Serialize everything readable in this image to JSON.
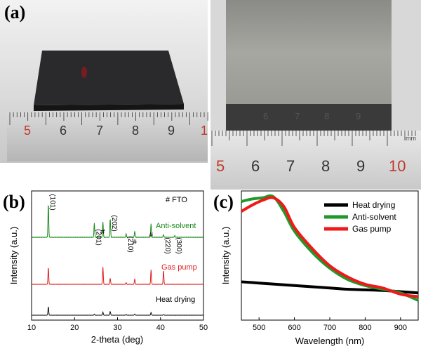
{
  "panels": {
    "a_label": "(a)",
    "b_label": "(b)",
    "c_label": "(c)"
  },
  "photo_left": {
    "ruler_numbers": [
      "5",
      "6",
      "7",
      "8",
      "9",
      "1"
    ],
    "ruler_highlight": "#c0392b"
  },
  "photo_right": {
    "ruler_numbers": [
      "5",
      "6",
      "7",
      "8",
      "9",
      "10"
    ],
    "ruler_unit": "mm",
    "film_digits": [
      "6",
      "7",
      "8",
      "9"
    ]
  },
  "chart_data": [
    {
      "type": "line",
      "xlabel": "2-theta (deg)",
      "ylabel": "Intensity (a.u.)",
      "xlim": [
        10,
        50
      ],
      "xticks": [
        10,
        20,
        30,
        40,
        50
      ],
      "legend_note": "# FTO",
      "series": [
        {
          "name": "Anti-solvent",
          "color": "#1a8a1a",
          "offset": 2,
          "peaks": [
            [
              13.9,
              1.0
            ],
            [
              24.6,
              0.42
            ],
            [
              26.6,
              0.46
            ],
            [
              28.3,
              0.56
            ],
            [
              32.0,
              0.1
            ],
            [
              34.0,
              0.18
            ],
            [
              37.8,
              0.4
            ],
            [
              40.7,
              0.08
            ],
            [
              43.3,
              0.05
            ]
          ]
        },
        {
          "name": "Gas pump",
          "color": "#e02020",
          "offset": 1,
          "peaks": [
            [
              13.9,
              0.6
            ],
            [
              26.6,
              0.62
            ],
            [
              28.3,
              0.22
            ],
            [
              32.0,
              0.06
            ],
            [
              34.0,
              0.2
            ],
            [
              37.8,
              0.52
            ],
            [
              40.7,
              0.5
            ]
          ]
        },
        {
          "name": "Heat drying",
          "color": "#111111",
          "offset": 0,
          "peaks": [
            [
              13.9,
              0.55
            ],
            [
              24.6,
              0.06
            ],
            [
              26.6,
              0.2
            ],
            [
              28.3,
              0.25
            ],
            [
              32.0,
              0.05
            ],
            [
              34.0,
              0.08
            ],
            [
              37.8,
              0.18
            ],
            [
              40.7,
              0.04
            ]
          ]
        }
      ],
      "peak_labels": [
        {
          "text": "(101)",
          "x": 13.9
        },
        {
          "text": "(201)",
          "x": 24.6
        },
        {
          "text": "#",
          "x": 26.6
        },
        {
          "text": "(202)",
          "x": 28.3
        },
        {
          "text": "(210)",
          "x": 32.0
        },
        {
          "text": "#",
          "x": 34.0
        },
        {
          "text": "#",
          "x": 37.8
        },
        {
          "text": "(220)",
          "x": 40.7
        },
        {
          "text": "(300)",
          "x": 43.3
        }
      ]
    },
    {
      "type": "line",
      "xlabel": "Wavelength (nm)",
      "ylabel": "Intensity (a.u.)",
      "xlim": [
        450,
        950
      ],
      "xticks": [
        500,
        600,
        700,
        800,
        900
      ],
      "legend": "top-right",
      "series": [
        {
          "name": "Heat drying",
          "color": "#000000",
          "x": [
            450,
            500,
            550,
            600,
            650,
            700,
            750,
            800,
            850,
            900,
            950
          ],
          "y": [
            0.31,
            0.3,
            0.29,
            0.28,
            0.27,
            0.26,
            0.25,
            0.245,
            0.24,
            0.23,
            0.22
          ]
        },
        {
          "name": "Anti-solvent",
          "color": "#1f9a2a",
          "x": [
            450,
            480,
            510,
            540,
            570,
            600,
            650,
            700,
            750,
            800,
            850,
            900,
            950
          ],
          "y": [
            0.96,
            0.98,
            0.99,
            1.0,
            0.88,
            0.72,
            0.55,
            0.42,
            0.33,
            0.28,
            0.25,
            0.22,
            0.16
          ]
        },
        {
          "name": "Gas pump",
          "color": "#f01818",
          "x": [
            450,
            480,
            510,
            540,
            570,
            600,
            650,
            700,
            750,
            800,
            850,
            900,
            950
          ],
          "y": [
            0.88,
            0.93,
            0.97,
            0.99,
            0.92,
            0.75,
            0.58,
            0.44,
            0.35,
            0.29,
            0.26,
            0.21,
            0.19
          ]
        }
      ]
    }
  ]
}
